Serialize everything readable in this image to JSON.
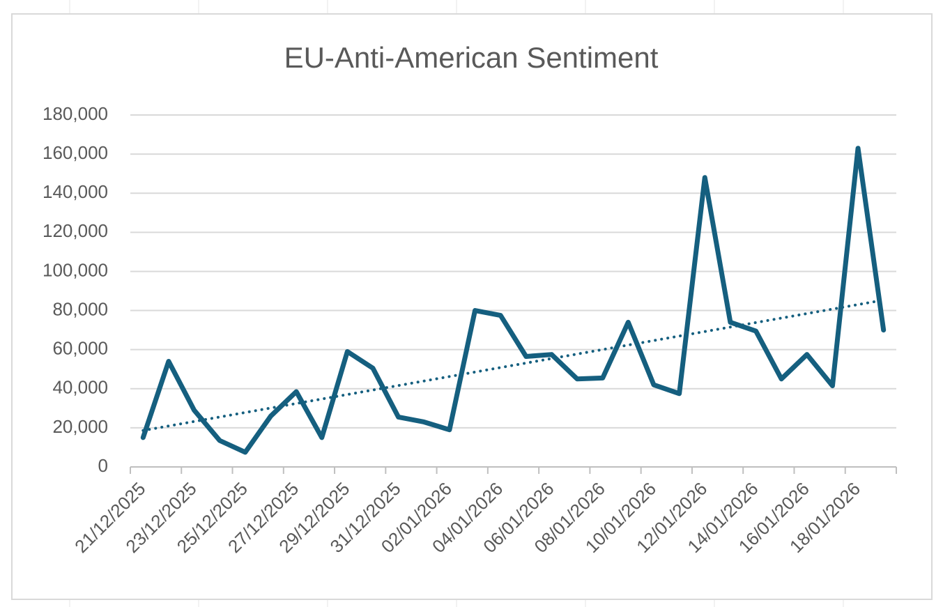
{
  "chart_data": {
    "type": "line",
    "title": "EU-Anti-American Sentiment",
    "categories": [
      "21/12/2025",
      null,
      "23/12/2025",
      null,
      "25/12/2025",
      null,
      "27/12/2025",
      null,
      "29/12/2025",
      null,
      "31/12/2025",
      null,
      "02/01/2026",
      null,
      "04/01/2026",
      null,
      "06/01/2026",
      null,
      "08/01/2026",
      null,
      "10/01/2026",
      null,
      "12/01/2026",
      null,
      "14/01/2026",
      null,
      "16/01/2026",
      null,
      "18/01/2026",
      null
    ],
    "series": [
      {
        "name": "EU-Anti-American Sentiment",
        "color": "#155f7f",
        "values": [
          15000,
          54000,
          29000,
          13500,
          7500,
          26000,
          38500,
          15000,
          59000,
          50500,
          25500,
          23000,
          19000,
          80000,
          77500,
          56500,
          57500,
          45000,
          45500,
          74000,
          42000,
          37500,
          148000,
          74000,
          69500,
          45000,
          57500,
          41500,
          163000,
          70000
        ]
      }
    ],
    "ylim": [
      0,
      180000
    ],
    "yticks": [
      0,
      {
        "value": 20000,
        "label": "20,000"
      },
      {
        "value": 40000,
        "label": "40,000"
      },
      {
        "value": 60000,
        "label": "60,000"
      },
      {
        "value": 80000,
        "label": "80,000"
      },
      {
        "value": 100000,
        "label": "100,000"
      },
      {
        "value": 120000,
        "label": "120,000"
      },
      {
        "value": 140000,
        "label": "140,000"
      },
      {
        "value": 160000,
        "label": "160,000"
      },
      {
        "value": 180000,
        "label": "180,000"
      }
    ],
    "grid": true,
    "trendline": "linear",
    "label_interval": 2
  }
}
